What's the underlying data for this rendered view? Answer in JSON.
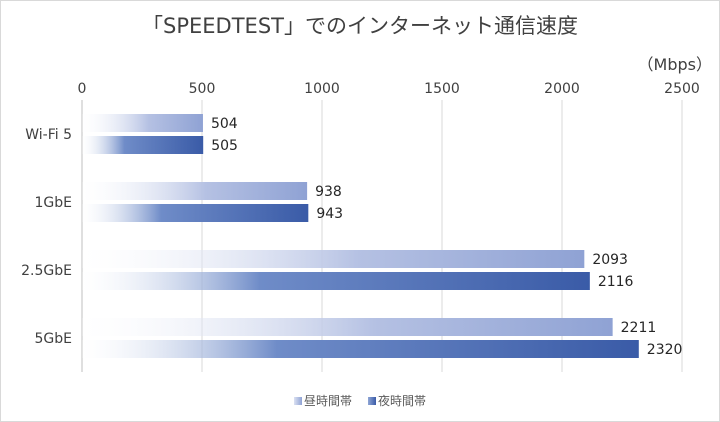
{
  "chart_data": {
    "type": "bar",
    "orientation": "horizontal",
    "title": "「SPEEDTEST」でのインターネット通信速度",
    "unit_label": "（Mbps）",
    "xlim": [
      0,
      2500
    ],
    "x_ticks": [
      0,
      500,
      1000,
      1500,
      2000,
      2500
    ],
    "x_tick_labels": [
      "0",
      "500",
      "1000",
      "1500",
      "2000",
      "2500"
    ],
    "xaxis_position": "top",
    "grid": true,
    "legend_position": "bottom",
    "categories": [
      "Wi-Fi 5",
      "1GbE",
      "2.5GbE",
      "5GbE"
    ],
    "series": [
      {
        "name": "昼時間帯",
        "values": [
          504,
          938,
          2093,
          2211
        ],
        "color": "#8fa2d4"
      },
      {
        "name": "夜時間帯",
        "values": [
          505,
          943,
          2116,
          2320
        ],
        "color": "#3a5ba7"
      }
    ]
  }
}
